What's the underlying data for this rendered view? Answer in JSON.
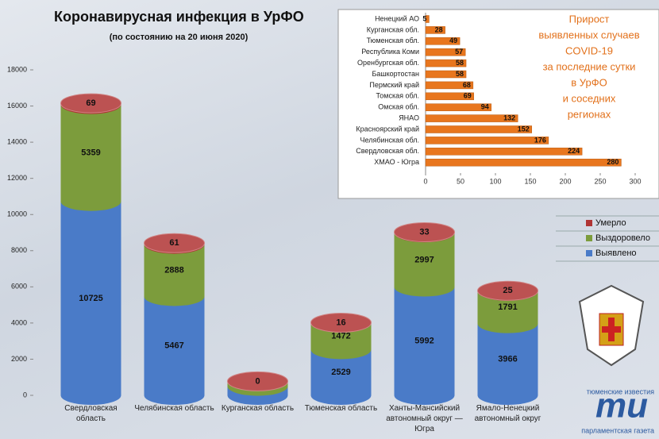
{
  "chart_data": [
    {
      "type": "bar",
      "stacked": true,
      "title": "Коронавирусная инфекция в УрФО",
      "subtitle": "(по состоянию на 20 июня 2020)",
      "categories": [
        "Свердловская область",
        "Челябинская область",
        "Курганская область",
        "Тюменская область",
        "Ханты-Мансийский автономный округ — Югра",
        "Ямало-Ненецкий автономный округ"
      ],
      "series": [
        {
          "name": "Выявлено",
          "color": "#4a7bc8",
          "values": [
            10725,
            5467,
            501,
            2529,
            5992,
            3966
          ]
        },
        {
          "name": "Выздоровело",
          "color": "#7c9c3c",
          "values": [
            5359,
            2888,
            272,
            1472,
            2997,
            1791
          ]
        },
        {
          "name": "Умерло",
          "color": "#b03434",
          "values": [
            69,
            61,
            0,
            16,
            33,
            25
          ]
        }
      ],
      "ylim": [
        0,
        18000
      ],
      "yticks": [
        0,
        2000,
        4000,
        6000,
        8000,
        10000,
        12000,
        14000,
        16000,
        18000
      ],
      "grid": false,
      "legend": "right"
    },
    {
      "type": "barh",
      "title": [
        "Прирост",
        "выявленных случаев",
        "COVID-19",
        "за последние сутки",
        "в УрФО",
        "и соседних",
        "регионах"
      ],
      "categories": [
        "Ненецкий АО",
        "Курганская обл.",
        "Тюменская обл.",
        "Республика Коми",
        "Оренбургская обл.",
        "Башкортостан",
        "Пермский край",
        "Томская обл.",
        "Омская обл.",
        "ЯНАО",
        "Красноярский край",
        "Челябинская обл.",
        "Свердловская обл.",
        "ХМАО - Югра"
      ],
      "values": [
        5,
        28,
        49,
        57,
        58,
        58,
        68,
        69,
        94,
        132,
        152,
        176,
        224,
        280
      ],
      "color": "#e8761e",
      "xlim": [
        0,
        300
      ],
      "xticks": [
        0,
        50,
        100,
        150,
        200,
        250,
        300
      ]
    }
  ],
  "logo": {
    "mark": "ти",
    "top": "тюменские известия",
    "bottom": "парламентская газета"
  }
}
